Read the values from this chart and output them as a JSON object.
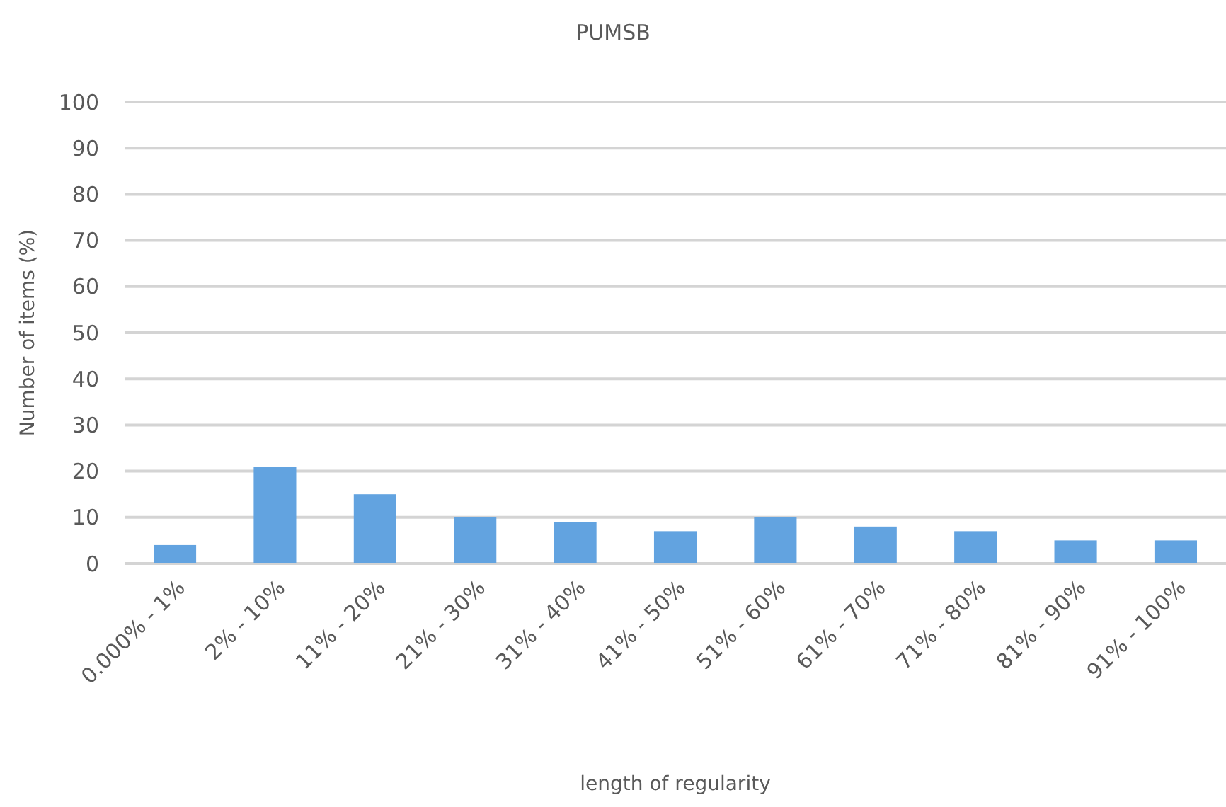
{
  "chart_data": {
    "type": "bar",
    "title": "PUMSB",
    "xlabel": "length of regularity",
    "ylabel": "Number of items (%)",
    "categories": [
      "0.000% - 1%",
      "2% - 10%",
      "11% - 20%",
      "21% - 30%",
      "31% - 40%",
      "41% - 50%",
      "51% - 60%",
      "61% - 70%",
      "71% - 80%",
      "81% - 90%",
      "91% - 100%"
    ],
    "values": [
      4,
      21,
      15,
      10,
      9,
      7,
      10,
      8,
      7,
      5,
      5
    ],
    "color": "#62a3e0",
    "ylim": [
      0,
      100
    ],
    "yticks": [
      0,
      10,
      20,
      30,
      40,
      50,
      60,
      70,
      80,
      90,
      100
    ],
    "grid": "y"
  }
}
